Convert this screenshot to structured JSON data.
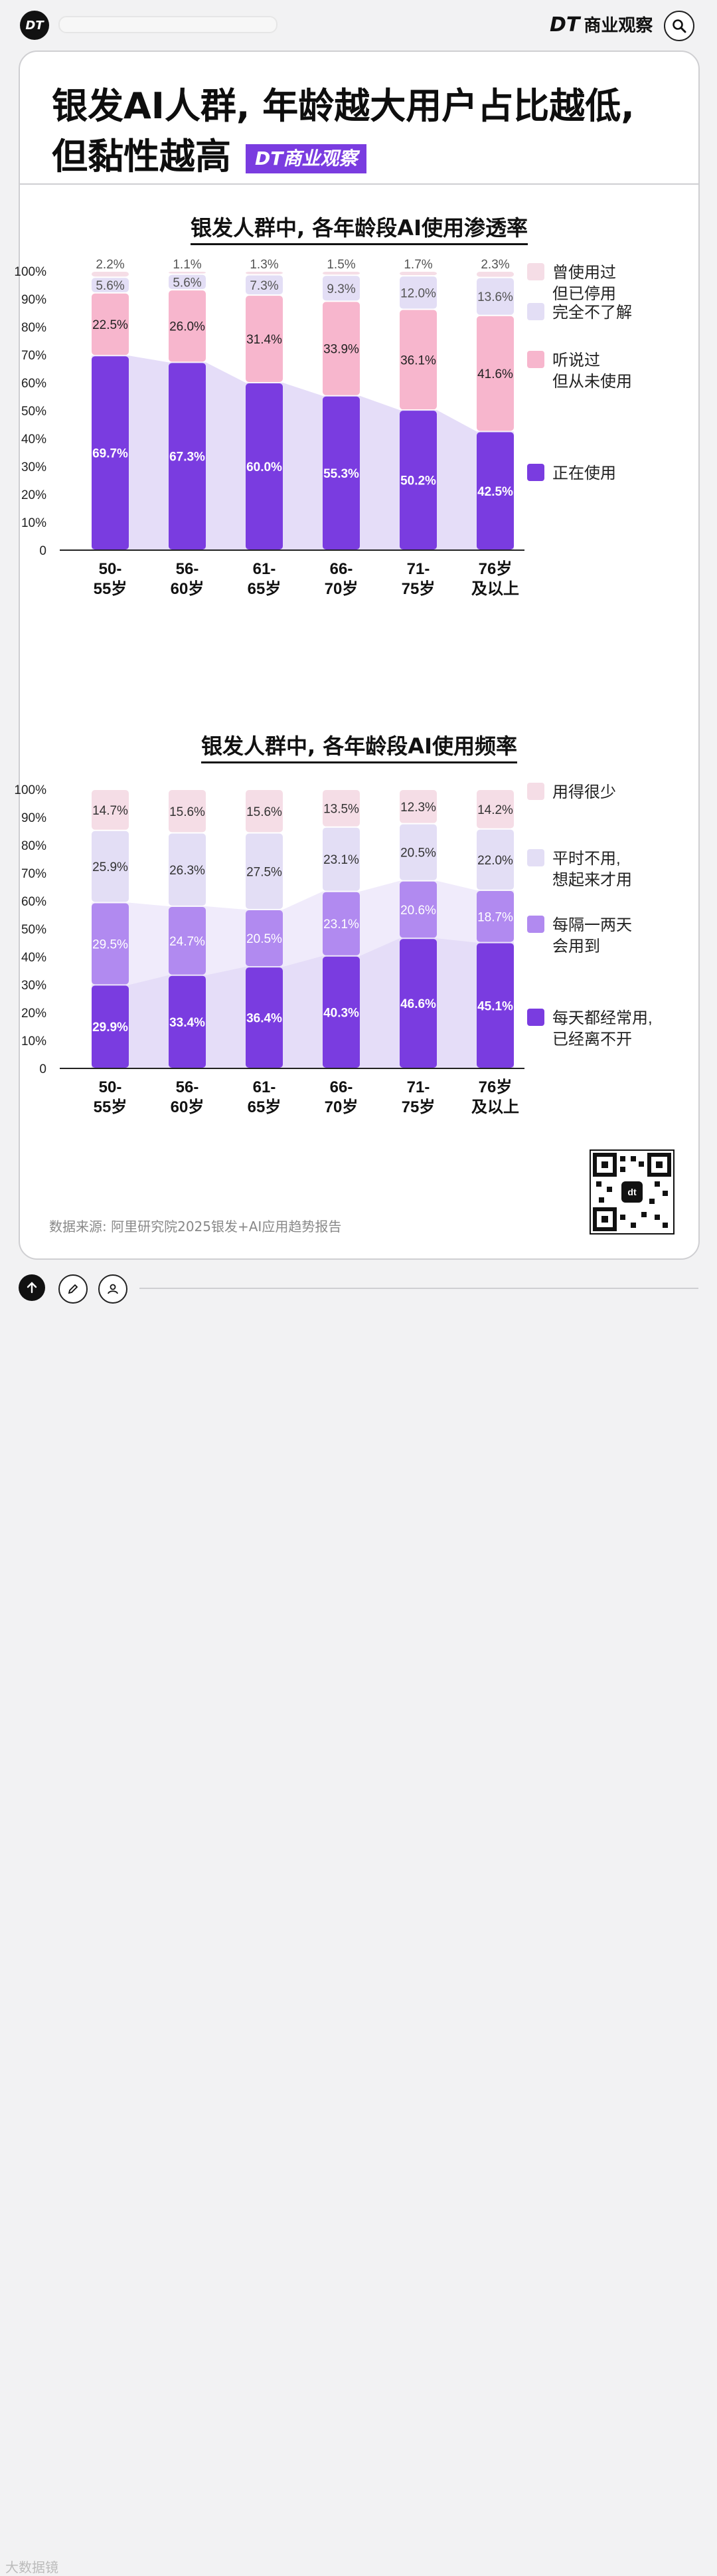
{
  "header": {
    "logo_text": "DT",
    "brand": "DT 商业观察",
    "brand_mark": "DT",
    "brand_name": "商业观察"
  },
  "title": {
    "line1": "银发AI人群, 年龄越大用户占比越低,",
    "line2": "但黏性越高",
    "tag": "DT商业观察"
  },
  "colors": {
    "deep_purple": "#7a3ce0",
    "mid_purple": "#b18af0",
    "pink": "#f7b6cd",
    "light_lavender": "#e3def5",
    "pale_pink": "#f5dde6",
    "area_fill": "#e5ddf8"
  },
  "chart_data": [
    {
      "type": "bar",
      "stacked": true,
      "title": "银发人群中, 各年龄段AI使用渗透率",
      "categories": [
        [
          "50-",
          "55岁"
        ],
        [
          "56-",
          "60岁"
        ],
        [
          "61-",
          "65岁"
        ],
        [
          "66-",
          "70岁"
        ],
        [
          "71-",
          "75岁"
        ],
        [
          "76岁",
          "及以上"
        ]
      ],
      "yticks": [
        "0",
        "10%",
        "20%",
        "30%",
        "40%",
        "50%",
        "60%",
        "70%",
        "80%",
        "90%",
        "100%"
      ],
      "ylim": [
        0,
        100
      ],
      "legend_position": "right",
      "series": [
        {
          "name": "正在使用",
          "legend": [
            "正在使用"
          ],
          "color": "#7a3ce0",
          "values": [
            69.7,
            67.3,
            60.0,
            55.3,
            50.2,
            42.5
          ],
          "labels": [
            "69.7%",
            "67.3%",
            "60.0%",
            "55.3%",
            "50.2%",
            "42.5%"
          ],
          "label_color": "#ffffff"
        },
        {
          "name": "听说过但从未使用",
          "legend": [
            "听说过",
            "但从未使用"
          ],
          "color": "#f7b6cd",
          "values": [
            22.5,
            26.0,
            31.4,
            33.9,
            36.1,
            41.6
          ],
          "labels": [
            "22.5%",
            "26.0%",
            "31.4%",
            "33.9%",
            "36.1%",
            "41.6%"
          ],
          "label_color": "#222222"
        },
        {
          "name": "完全不了解",
          "legend": [
            "完全不了解"
          ],
          "color": "#e3def5",
          "values": [
            5.6,
            5.6,
            7.3,
            9.3,
            12.0,
            13.6
          ],
          "labels": [
            "5.6%",
            "5.6%",
            "7.3%",
            "9.3%",
            "12.0%",
            "13.6%"
          ],
          "label_color": "#555555"
        },
        {
          "name": "曾使用过但已停用",
          "legend": [
            "曾使用过",
            "但已停用"
          ],
          "color": "#f5dde6",
          "values": [
            2.2,
            1.1,
            1.3,
            1.5,
            1.7,
            2.3
          ],
          "labels": [
            "2.2%",
            "1.1%",
            "1.3%",
            "1.5%",
            "1.7%",
            "2.3%"
          ],
          "label_color": "#555555"
        }
      ]
    },
    {
      "type": "bar",
      "stacked": true,
      "title": "银发人群中, 各年龄段AI使用频率",
      "categories": [
        [
          "50-",
          "55岁"
        ],
        [
          "56-",
          "60岁"
        ],
        [
          "61-",
          "65岁"
        ],
        [
          "66-",
          "70岁"
        ],
        [
          "71-",
          "75岁"
        ],
        [
          "76岁",
          "及以上"
        ]
      ],
      "yticks": [
        "0",
        "10%",
        "20%",
        "30%",
        "40%",
        "50%",
        "60%",
        "70%",
        "80%",
        "90%",
        "100%"
      ],
      "ylim": [
        0,
        100
      ],
      "legend_position": "right",
      "series": [
        {
          "name": "每天都经常用,已经离不开",
          "legend": [
            "每天都经常用,",
            "已经离不开"
          ],
          "color": "#7a3ce0",
          "values": [
            29.9,
            33.4,
            36.4,
            40.3,
            46.6,
            45.1
          ],
          "labels": [
            "29.9%",
            "33.4%",
            "36.4%",
            "40.3%",
            "46.6%",
            "45.1%"
          ],
          "label_color": "#ffffff"
        },
        {
          "name": "每隔一两天会用到",
          "legend": [
            "每隔一两天",
            "会用到"
          ],
          "color": "#b18af0",
          "values": [
            29.5,
            24.7,
            20.5,
            23.1,
            20.6,
            18.7
          ],
          "labels": [
            "29.5%",
            "24.7%",
            "20.5%",
            "23.1%",
            "20.6%",
            "18.7%"
          ],
          "label_color": "#ffffff"
        },
        {
          "name": "平时不用,想起来才用",
          "legend": [
            "平时不用,",
            "想起来才用"
          ],
          "color": "#e3def5",
          "values": [
            25.9,
            26.3,
            27.5,
            23.1,
            20.5,
            22.0
          ],
          "labels": [
            "25.9%",
            "26.3%",
            "27.5%",
            "23.1%",
            "20.5%",
            "22.0%"
          ],
          "label_color": "#333333"
        },
        {
          "name": "用得很少",
          "legend": [
            "用得很少"
          ],
          "color": "#f5dde6",
          "values": [
            14.7,
            15.6,
            15.6,
            13.5,
            12.3,
            14.2
          ],
          "labels": [
            "14.7%",
            "15.6%",
            "15.6%",
            "13.5%",
            "12.3%",
            "14.2%"
          ],
          "label_color": "#333333"
        }
      ]
    }
  ],
  "footer": {
    "source": "数据来源: 阿里研究院2025银发+AI应用趋势报告",
    "qr_label": "dt",
    "watermark": "大数据镜"
  }
}
